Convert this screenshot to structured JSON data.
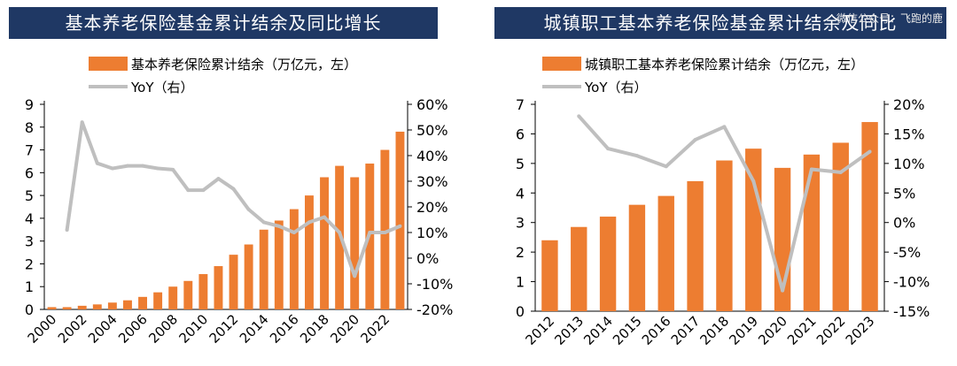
{
  "charts": [
    {
      "title": "基本养老保险基金累计结余及同比增长",
      "chart_data": {
        "type": "bar",
        "x": [
          "2000",
          "2001",
          "2002",
          "2003",
          "2004",
          "2005",
          "2006",
          "2007",
          "2008",
          "2009",
          "2010",
          "2011",
          "2012",
          "2013",
          "2014",
          "2015",
          "2016",
          "2017",
          "2018",
          "2019",
          "2020",
          "2021",
          "2022",
          "2023"
        ],
        "x_tick_labels": [
          "2000",
          "2002",
          "2004",
          "2006",
          "2008",
          "2010",
          "2012",
          "2014",
          "2016",
          "2018",
          "2020",
          "2022"
        ],
        "series": [
          {
            "name": "基本养老保险累计结余（万亿元，左）",
            "type": "bar",
            "axis": "left",
            "values": [
              0.1,
              0.1,
              0.16,
              0.22,
              0.3,
              0.4,
              0.55,
              0.75,
              1.0,
              1.25,
              1.55,
              1.9,
              2.4,
              2.85,
              3.5,
              3.9,
              4.4,
              5.0,
              5.8,
              6.3,
              5.8,
              6.4,
              7.0,
              7.8
            ]
          },
          {
            "name": "YoY（右）",
            "type": "line",
            "axis": "right",
            "values": [
              null,
              11,
              53,
              37,
              35,
              36,
              36,
              35,
              34.5,
              26.5,
              26.5,
              31,
              27,
              19,
              14,
              12.5,
              10,
              14,
              16,
              10,
              -7,
              10,
              10,
              12.5
            ]
          }
        ],
        "y_left": {
          "min": 0,
          "max": 9,
          "ticks": [
            "0",
            "1",
            "2",
            "3",
            "4",
            "5",
            "6",
            "7",
            "8",
            "9"
          ]
        },
        "y_right": {
          "min": -20,
          "max": 60,
          "ticks": [
            "-20%",
            "-10%",
            "0%",
            "10%",
            "20%",
            "30%",
            "40%",
            "50%",
            "60%"
          ]
        },
        "legend_position": "top-center",
        "grid": false
      }
    },
    {
      "title": "城镇职工基本养老保险基金累计结余及同比",
      "chart_data": {
        "type": "bar",
        "x": [
          "2012",
          "2013",
          "2014",
          "2015",
          "2016",
          "2017",
          "2018",
          "2019",
          "2020",
          "2021",
          "2022",
          "2023"
        ],
        "x_tick_labels": [
          "2012",
          "2013",
          "2014",
          "2015",
          "2016",
          "2017",
          "2018",
          "2019",
          "2020",
          "2021",
          "2022",
          "2023"
        ],
        "series": [
          {
            "name": "城镇职工基本养老保险累计结余（万亿元，左）",
            "type": "bar",
            "axis": "left",
            "values": [
              2.4,
              2.85,
              3.2,
              3.6,
              3.9,
              4.4,
              5.1,
              5.5,
              4.85,
              5.3,
              5.7,
              6.4
            ]
          },
          {
            "name": "YoY（右）",
            "type": "line",
            "axis": "right",
            "values": [
              null,
              18,
              12.5,
              11.3,
              9.5,
              14,
              16.2,
              7,
              -11.5,
              9,
              8.5,
              12
            ]
          }
        ],
        "y_left": {
          "min": 0,
          "max": 7,
          "ticks": [
            "0",
            "1",
            "2",
            "3",
            "4",
            "5",
            "6",
            "7"
          ]
        },
        "y_right": {
          "min": -15,
          "max": 20,
          "ticks": [
            "-15%",
            "-10%",
            "-5%",
            "0%",
            "5%",
            "10%",
            "15%",
            "20%"
          ]
        },
        "legend_position": "top-center",
        "grid": false
      }
    }
  ],
  "watermark": "微信公众号：飞跑的鹿",
  "colors": {
    "bar": "#ed7d31",
    "line": "#bfbfbf",
    "title_bg": "#1f3864",
    "axis": "#000000"
  }
}
